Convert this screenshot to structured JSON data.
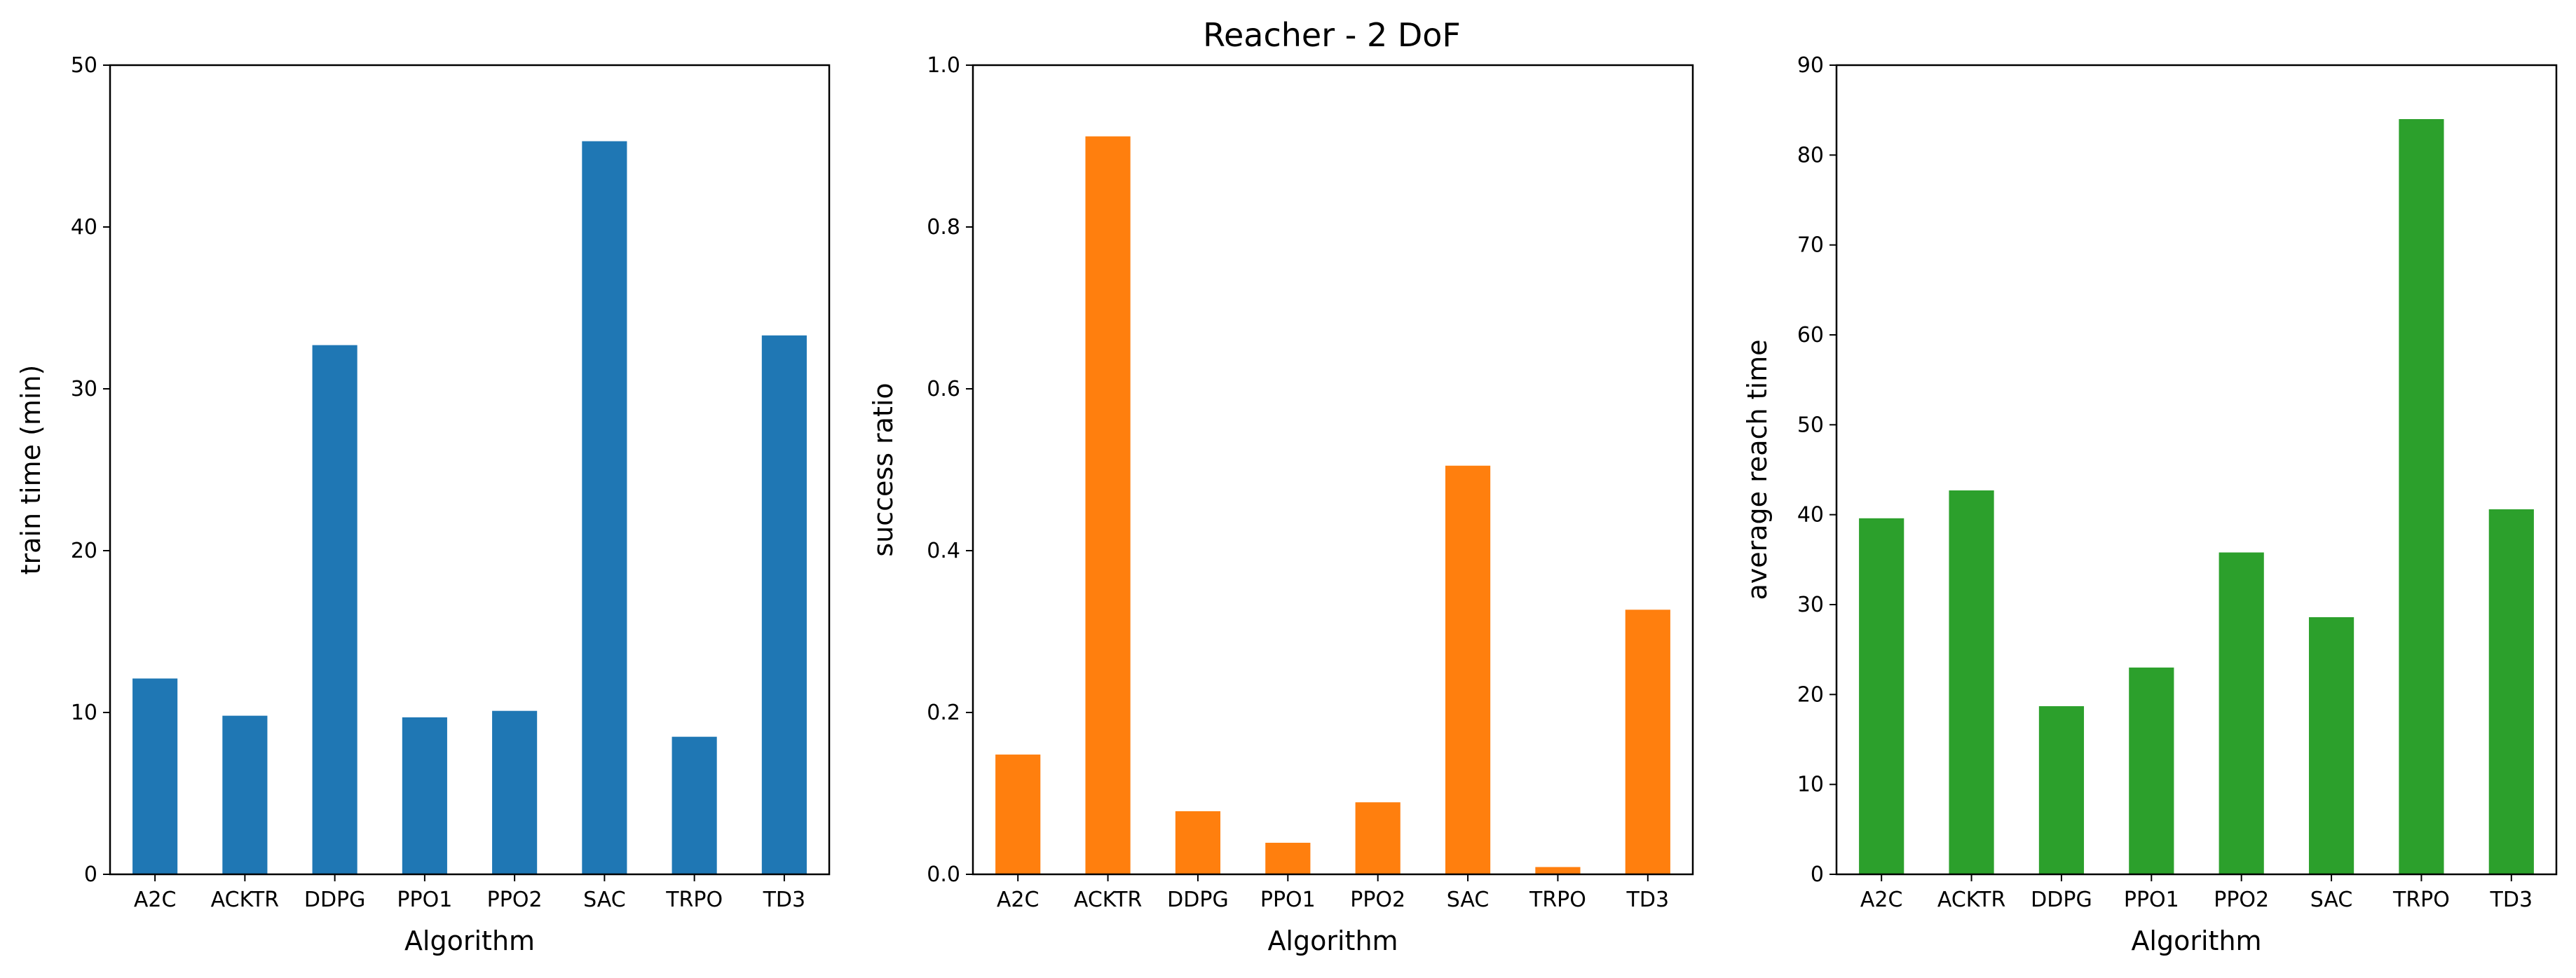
{
  "title": "Reacher - 2 DoF",
  "chart_data": [
    {
      "type": "bar",
      "categories": [
        "A2C",
        "ACKTR",
        "DDPG",
        "PPO1",
        "PPO2",
        "SAC",
        "TRPO",
        "TD3"
      ],
      "values": [
        12.1,
        9.8,
        32.7,
        9.7,
        10.1,
        45.3,
        8.5,
        33.3
      ],
      "color": "#1f77b4",
      "title": "",
      "xlabel": "Algorithm",
      "ylabel": "train time (min)",
      "ylim": [
        0,
        50
      ],
      "yticks": [
        0,
        10,
        20,
        30,
        40,
        50
      ],
      "ytick_labels": [
        "0",
        "10",
        "20",
        "30",
        "40",
        "50"
      ],
      "grid": false
    },
    {
      "type": "bar",
      "categories": [
        "A2C",
        "ACKTR",
        "DDPG",
        "PPO1",
        "PPO2",
        "SAC",
        "TRPO",
        "TD3"
      ],
      "values": [
        0.148,
        0.912,
        0.078,
        0.039,
        0.089,
        0.505,
        0.009,
        0.327
      ],
      "color": "#ff7f0e",
      "title": "",
      "xlabel": "Algorithm",
      "ylabel": "success ratio",
      "ylim": [
        0,
        1.0
      ],
      "yticks": [
        0,
        0.2,
        0.4,
        0.6,
        0.8,
        1.0
      ],
      "ytick_labels": [
        "0.0",
        "0.2",
        "0.4",
        "0.6",
        "0.8",
        "1.0"
      ],
      "grid": false
    },
    {
      "type": "bar",
      "categories": [
        "A2C",
        "ACKTR",
        "DDPG",
        "PPO1",
        "PPO2",
        "SAC",
        "TRPO",
        "TD3"
      ],
      "values": [
        39.6,
        42.7,
        18.7,
        23.0,
        35.8,
        28.6,
        84.0,
        40.6
      ],
      "color": "#2ca02c",
      "title": "",
      "xlabel": "Algorithm",
      "ylabel": "average reach time",
      "ylim": [
        0,
        90
      ],
      "yticks": [
        0,
        10,
        20,
        30,
        40,
        50,
        60,
        70,
        80,
        90
      ],
      "ytick_labels": [
        "0",
        "10",
        "20",
        "30",
        "40",
        "50",
        "60",
        "70",
        "80",
        "90"
      ],
      "grid": false
    }
  ]
}
